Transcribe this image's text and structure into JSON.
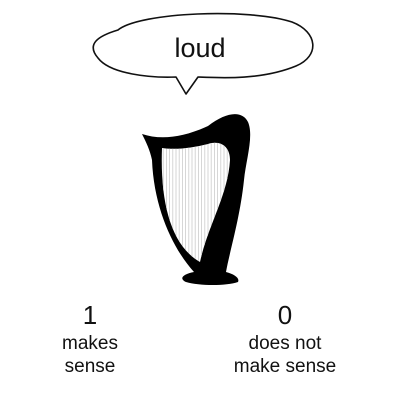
{
  "stimulus": {
    "word": "loud",
    "image_icon": "harp-icon"
  },
  "response_scale": [
    {
      "value": "1",
      "label_line1": "makes",
      "label_line2": "sense"
    },
    {
      "value": "0",
      "label_line1": "does not",
      "label_line2": "make sense"
    }
  ],
  "colors": {
    "background": "#ffffff",
    "text": "#111111",
    "harp_frame": "#000000",
    "harp_strings": "#cccccc"
  }
}
